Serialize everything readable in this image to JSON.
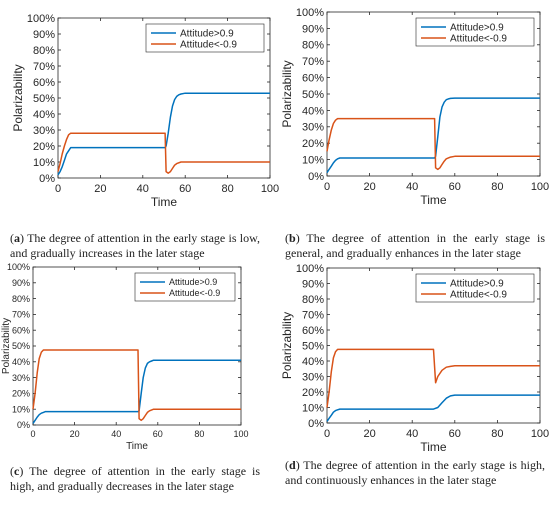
{
  "legend_labels": [
    "Attitude>0.9",
    "Attitude<-0.9"
  ],
  "colors": {
    "series_pos": "#0072BD",
    "series_neg": "#D95319",
    "axis": "#262626",
    "text": "#262626"
  },
  "chart_data": [
    {
      "type": "line",
      "xlabel": "Time",
      "ylabel": "Polarizability",
      "xlim": [
        0,
        100
      ],
      "ylim": [
        0,
        100
      ],
      "x_ticks": [
        0,
        20,
        40,
        60,
        80,
        100
      ],
      "y_ticks": [
        "0%",
        "10%",
        "20%",
        "30%",
        "40%",
        "50%",
        "60%",
        "70%",
        "80%",
        "90%",
        "100%"
      ],
      "legend": "top-right",
      "grid": false,
      "series": [
        {
          "name": "Attitude>0.9",
          "color": "#0072BD",
          "x": [
            0,
            1,
            2,
            3,
            4,
            5,
            6,
            50.5,
            51,
            52,
            53,
            54,
            55,
            56,
            57,
            58,
            60,
            100
          ],
          "y": [
            2,
            4,
            7,
            11,
            15,
            17,
            19,
            19,
            20,
            28,
            38,
            45,
            49,
            51,
            52,
            52.5,
            53,
            53
          ]
        },
        {
          "name": "Attitude<-0.9",
          "color": "#D95319",
          "x": [
            0,
            1,
            2,
            3,
            4,
            5,
            6,
            50.5,
            51,
            52,
            53,
            54,
            55,
            56,
            58,
            60,
            100
          ],
          "y": [
            4,
            9,
            15,
            20,
            24,
            27,
            28,
            28,
            4,
            3,
            4,
            6,
            8,
            9,
            10,
            10,
            10
          ]
        }
      ]
    },
    {
      "type": "line",
      "xlabel": "Time",
      "ylabel": "Polarizability",
      "xlim": [
        0,
        100
      ],
      "ylim": [
        0,
        100
      ],
      "x_ticks": [
        0,
        20,
        40,
        60,
        80,
        100
      ],
      "y_ticks": [
        "0%",
        "10%",
        "20%",
        "30%",
        "40%",
        "50%",
        "60%",
        "70%",
        "80%",
        "90%",
        "100%"
      ],
      "legend": "top-right",
      "grid": false,
      "series": [
        {
          "name": "Attitude>0.9",
          "color": "#0072BD",
          "x": [
            0,
            1,
            2,
            3,
            4,
            5,
            6,
            50.5,
            51,
            52,
            53,
            54,
            55,
            56,
            57,
            58,
            60,
            100
          ],
          "y": [
            2,
            4,
            6,
            8,
            9.5,
            10.5,
            11,
            11,
            12,
            24,
            36,
            42,
            45,
            46.5,
            47,
            47.3,
            47.5,
            47.5
          ]
        },
        {
          "name": "Attitude<-0.9",
          "color": "#D95319",
          "x": [
            0,
            1,
            2,
            3,
            4,
            5,
            6,
            50.5,
            51,
            52,
            53,
            54,
            55,
            56,
            58,
            60,
            100
          ],
          "y": [
            15,
            22,
            28,
            32,
            34,
            35,
            35,
            35,
            5,
            4,
            5,
            7,
            9,
            10.5,
            11.5,
            12,
            12
          ]
        }
      ]
    },
    {
      "type": "line",
      "xlabel": "Time",
      "ylabel": "Polarizability",
      "xlim": [
        0,
        100
      ],
      "ylim": [
        0,
        100
      ],
      "x_ticks": [
        0,
        20,
        40,
        60,
        80,
        100
      ],
      "y_ticks": [
        "0%",
        "10%",
        "20%",
        "30%",
        "40%",
        "50%",
        "60%",
        "70%",
        "80%",
        "90%",
        "100%"
      ],
      "legend": "top-right",
      "grid": false,
      "series": [
        {
          "name": "Attitude>0.9",
          "color": "#0072BD",
          "x": [
            0,
            1,
            2,
            3,
            4,
            5,
            6,
            50.5,
            51,
            52,
            53,
            54,
            55,
            56,
            57,
            58,
            60,
            100
          ],
          "y": [
            1,
            3,
            5,
            6.5,
            7.5,
            8,
            8.5,
            8.5,
            9,
            20,
            30,
            36,
            39,
            40,
            40.5,
            41,
            41,
            41
          ]
        },
        {
          "name": "Attitude<-0.9",
          "color": "#D95319",
          "x": [
            0,
            1,
            2,
            3,
            4,
            5,
            6,
            50.5,
            51,
            52,
            53,
            54,
            55,
            56,
            58,
            60,
            100
          ],
          "y": [
            10,
            20,
            33,
            42,
            46,
            47.5,
            47.5,
            47.5,
            4,
            3,
            4,
            6,
            8,
            9,
            10,
            10,
            10
          ]
        }
      ]
    },
    {
      "type": "line",
      "xlabel": "Time",
      "ylabel": "Polarizability",
      "xlim": [
        0,
        100
      ],
      "ylim": [
        0,
        100
      ],
      "x_ticks": [
        0,
        20,
        40,
        60,
        80,
        100
      ],
      "y_ticks": [
        "0%",
        "10%",
        "20%",
        "30%",
        "40%",
        "50%",
        "60%",
        "70%",
        "80%",
        "90%",
        "100%"
      ],
      "legend": "top-right",
      "grid": false,
      "series": [
        {
          "name": "Attitude>0.9",
          "color": "#0072BD",
          "x": [
            0,
            1,
            2,
            3,
            4,
            5,
            6,
            50,
            52,
            54,
            56,
            58,
            60,
            100
          ],
          "y": [
            1,
            3,
            5,
            7,
            8,
            8.5,
            9,
            9,
            10,
            13,
            16,
            17.5,
            18,
            18
          ]
        },
        {
          "name": "Attitude<-0.9",
          "color": "#D95319",
          "x": [
            0,
            1,
            2,
            3,
            4,
            5,
            6,
            50,
            51,
            52,
            54,
            56,
            58,
            60,
            100
          ],
          "y": [
            10,
            20,
            33,
            42,
            46,
            47.5,
            47.5,
            47.5,
            26,
            30,
            34,
            36,
            36.5,
            37,
            37
          ]
        }
      ]
    }
  ],
  "captions": [
    {
      "letter": "a",
      "text": "The degree of attention in the early stage is low, and gradually increases in the later stage"
    },
    {
      "letter": "b",
      "text": "The degree of attention in the early stage is general, and gradually enhances in the later stage"
    },
    {
      "letter": "c",
      "text": "The degree of attention in the early stage is high, and gradually decreases in the later stage"
    },
    {
      "letter": "d",
      "text": "The degree of attention in the early stage is high, and continuously enhances in the later stage"
    }
  ]
}
